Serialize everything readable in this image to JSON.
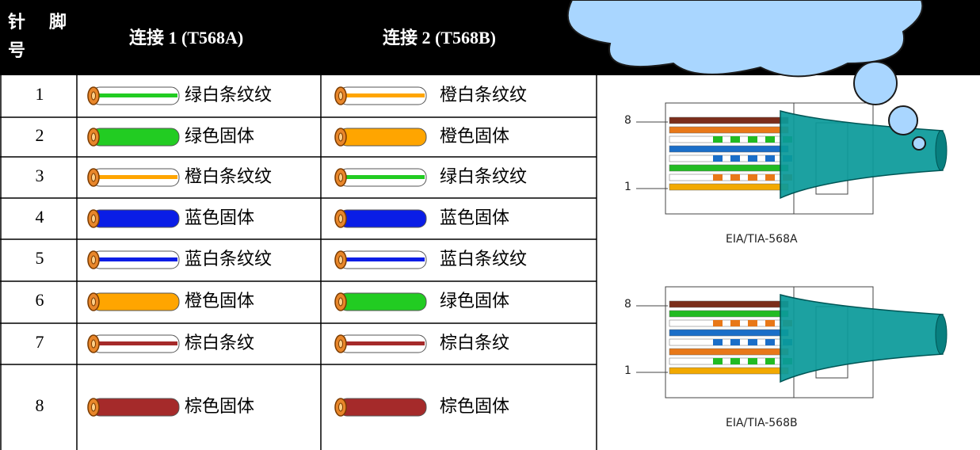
{
  "header": {
    "pin": [
      "针",
      "脚",
      "号"
    ],
    "a": "连接 1 (T568A)",
    "b": "连接 2 (T568B)"
  },
  "rows": [
    [
      "1",
      "绿白条纹纹",
      "橙白条纹纹"
    ],
    [
      "2",
      "绿色固体",
      "橙色固体"
    ],
    [
      "3",
      "橙白条纹纹",
      "绿白条纹纹"
    ],
    [
      "4",
      "蓝色固体",
      "蓝色固体"
    ],
    [
      "5",
      "蓝白条纹纹",
      "蓝白条纹纹"
    ],
    [
      "6",
      "橙色固体",
      "绿色固体"
    ],
    [
      "7",
      "棕白条纹",
      "棕白条纹"
    ],
    [
      "8",
      "棕色固体",
      "棕色固体"
    ]
  ],
  "diagrams": [
    {
      "top_pin": "8",
      "bottom_pin": "1",
      "caption": "EIA/TIA-568A"
    },
    {
      "top_pin": "8",
      "bottom_pin": "1",
      "caption": "EIA/TIA-568B"
    }
  ]
}
